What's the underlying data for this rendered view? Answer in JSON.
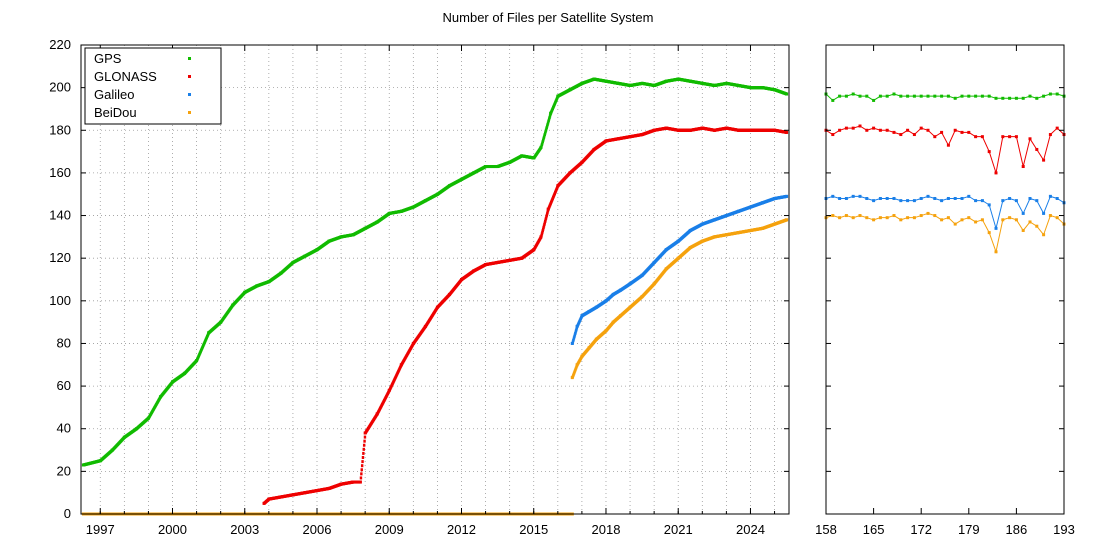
{
  "colors": {
    "GPS": "#11bb00",
    "GLONASS": "#ee0000",
    "Galileo": "#1a7fe8",
    "BeiDou": "#f5a20e",
    "grid": "#9a9a9a",
    "axis": "#000000"
  },
  "chart_data": [
    {
      "type": "scatter",
      "title": "Number of Files per Satellite System",
      "xlabel": "",
      "ylabel": "",
      "x_unit": "year",
      "xlim": [
        1996.2,
        2025.6
      ],
      "ylim": [
        0,
        220
      ],
      "xticks": [
        1997,
        2000,
        2003,
        2006,
        2009,
        2012,
        2015,
        2018,
        2021,
        2024
      ],
      "yticks": [
        0,
        20,
        40,
        60,
        80,
        100,
        120,
        140,
        160,
        180,
        200,
        220
      ],
      "grid": true,
      "legend": "top-left",
      "series": [
        {
          "name": "GPS",
          "x": [
            1996.3,
            1997.0,
            1997.5,
            1998.0,
            1998.5,
            1999.0,
            1999.5,
            2000.0,
            2000.5,
            2001.0,
            2001.5,
            2002.0,
            2002.5,
            2003.0,
            2003.5,
            2004.0,
            2004.5,
            2005.0,
            2005.5,
            2006.0,
            2006.5,
            2007.0,
            2007.5,
            2008.0,
            2008.5,
            2009.0,
            2009.5,
            2010.0,
            2010.5,
            2011.0,
            2011.5,
            2012.0,
            2012.5,
            2013.0,
            2013.5,
            2014.0,
            2014.5,
            2015.0,
            2015.3,
            2015.7,
            2016.0,
            2016.5,
            2017.0,
            2017.5,
            2018.0,
            2018.5,
            2019.0,
            2019.5,
            2020.0,
            2020.5,
            2021.0,
            2021.5,
            2022.0,
            2022.5,
            2023.0,
            2023.5,
            2024.0,
            2024.5,
            2025.0,
            2025.5
          ],
          "y": [
            23,
            25,
            30,
            36,
            40,
            45,
            55,
            62,
            66,
            72,
            85,
            90,
            98,
            104,
            107,
            109,
            113,
            118,
            121,
            124,
            128,
            130,
            131,
            134,
            137,
            141,
            142,
            144,
            147,
            150,
            154,
            157,
            160,
            163,
            163,
            165,
            168,
            167,
            172,
            188,
            196,
            199,
            202,
            204,
            203,
            202,
            201,
            202,
            201,
            203,
            204,
            203,
            202,
            201,
            202,
            201,
            200,
            200,
            199,
            197
          ]
        },
        {
          "name": "GLONASS",
          "x": [
            2003.8,
            2004.0,
            2004.5,
            2005.0,
            2005.5,
            2006.0,
            2006.5,
            2007.0,
            2007.5,
            2007.8,
            2008.0,
            2008.5,
            2009.0,
            2009.5,
            2010.0,
            2010.5,
            2011.0,
            2011.5,
            2012.0,
            2012.5,
            2013.0,
            2013.5,
            2014.0,
            2014.5,
            2015.0,
            2015.3,
            2015.6,
            2016.0,
            2016.5,
            2017.0,
            2017.5,
            2018.0,
            2018.5,
            2019.0,
            2019.5,
            2020.0,
            2020.5,
            2021.0,
            2021.5,
            2022.0,
            2022.5,
            2023.0,
            2023.5,
            2024.0,
            2024.5,
            2025.0,
            2025.5
          ],
          "y": [
            5,
            7,
            8,
            9,
            10,
            11,
            12,
            14,
            15,
            15,
            38,
            47,
            58,
            70,
            80,
            88,
            97,
            103,
            110,
            114,
            117,
            118,
            119,
            120,
            124,
            130,
            143,
            154,
            160,
            165,
            171,
            175,
            176,
            177,
            178,
            180,
            181,
            180,
            180,
            181,
            180,
            181,
            180,
            180,
            180,
            180,
            179
          ]
        },
        {
          "name": "Galileo",
          "x": [
            2016.6,
            2016.8,
            2017.0,
            2017.3,
            2017.6,
            2018.0,
            2018.3,
            2018.6,
            2019.0,
            2019.5,
            2020.0,
            2020.5,
            2021.0,
            2021.5,
            2022.0,
            2022.5,
            2023.0,
            2023.5,
            2024.0,
            2024.5,
            2025.0,
            2025.5
          ],
          "y": [
            80,
            88,
            93,
            95,
            97,
            100,
            103,
            105,
            108,
            112,
            118,
            124,
            128,
            133,
            136,
            138,
            140,
            142,
            144,
            146,
            148,
            149
          ]
        },
        {
          "name": "BeiDou",
          "x": [
            1996.3,
            2016.6,
            2016.6,
            2016.8,
            2017.0,
            2017.3,
            2017.6,
            2018.0,
            2018.3,
            2018.6,
            2019.0,
            2019.5,
            2020.0,
            2020.5,
            2021.0,
            2021.5,
            2022.0,
            2022.5,
            2023.0,
            2023.5,
            2024.0,
            2024.5,
            2025.0,
            2025.5
          ],
          "y": [
            0,
            0,
            64,
            70,
            74,
            78,
            82,
            86,
            90,
            93,
            97,
            102,
            108,
            115,
            120,
            125,
            128,
            130,
            131,
            132,
            133,
            134,
            136,
            138
          ]
        }
      ]
    },
    {
      "type": "line",
      "title": "",
      "xlabel": "",
      "ylabel": "",
      "xlim": [
        158,
        193
      ],
      "ylim": [
        0,
        220
      ],
      "xticks": [
        158,
        165,
        172,
        179,
        186,
        193
      ],
      "grid": false,
      "legend": "none",
      "x": [
        158,
        159,
        160,
        161,
        162,
        163,
        164,
        165,
        166,
        167,
        168,
        169,
        170,
        171,
        172,
        173,
        174,
        175,
        176,
        177,
        178,
        179,
        180,
        181,
        182,
        183,
        184,
        185,
        186,
        187,
        188,
        189,
        190,
        191,
        192,
        193
      ],
      "series": [
        {
          "name": "GPS",
          "values": [
            197,
            194,
            196,
            196,
            197,
            196,
            196,
            194,
            196,
            196,
            197,
            196,
            196,
            196,
            196,
            196,
            196,
            196,
            196,
            195,
            196,
            196,
            196,
            196,
            196,
            195,
            195,
            195,
            195,
            195,
            196,
            195,
            196,
            197,
            197,
            196
          ]
        },
        {
          "name": "GLONASS",
          "values": [
            180,
            178,
            180,
            181,
            181,
            182,
            180,
            181,
            180,
            180,
            179,
            178,
            180,
            178,
            181,
            180,
            177,
            179,
            173,
            180,
            179,
            179,
            177,
            177,
            170,
            160,
            177,
            177,
            177,
            163,
            176,
            171,
            166,
            178,
            181,
            178
          ]
        },
        {
          "name": "Galileo",
          "values": [
            148,
            149,
            148,
            148,
            149,
            149,
            148,
            147,
            148,
            148,
            148,
            147,
            147,
            147,
            148,
            149,
            148,
            147,
            148,
            148,
            148,
            149,
            147,
            147,
            145,
            134,
            147,
            148,
            147,
            141,
            148,
            147,
            141,
            149,
            148,
            146
          ]
        },
        {
          "name": "BeiDou",
          "values": [
            139,
            140,
            139,
            140,
            139,
            140,
            139,
            138,
            139,
            139,
            140,
            138,
            139,
            139,
            140,
            141,
            140,
            138,
            139,
            136,
            138,
            139,
            137,
            138,
            132,
            123,
            138,
            139,
            138,
            133,
            137,
            135,
            131,
            140,
            139,
            136
          ]
        }
      ]
    }
  ]
}
